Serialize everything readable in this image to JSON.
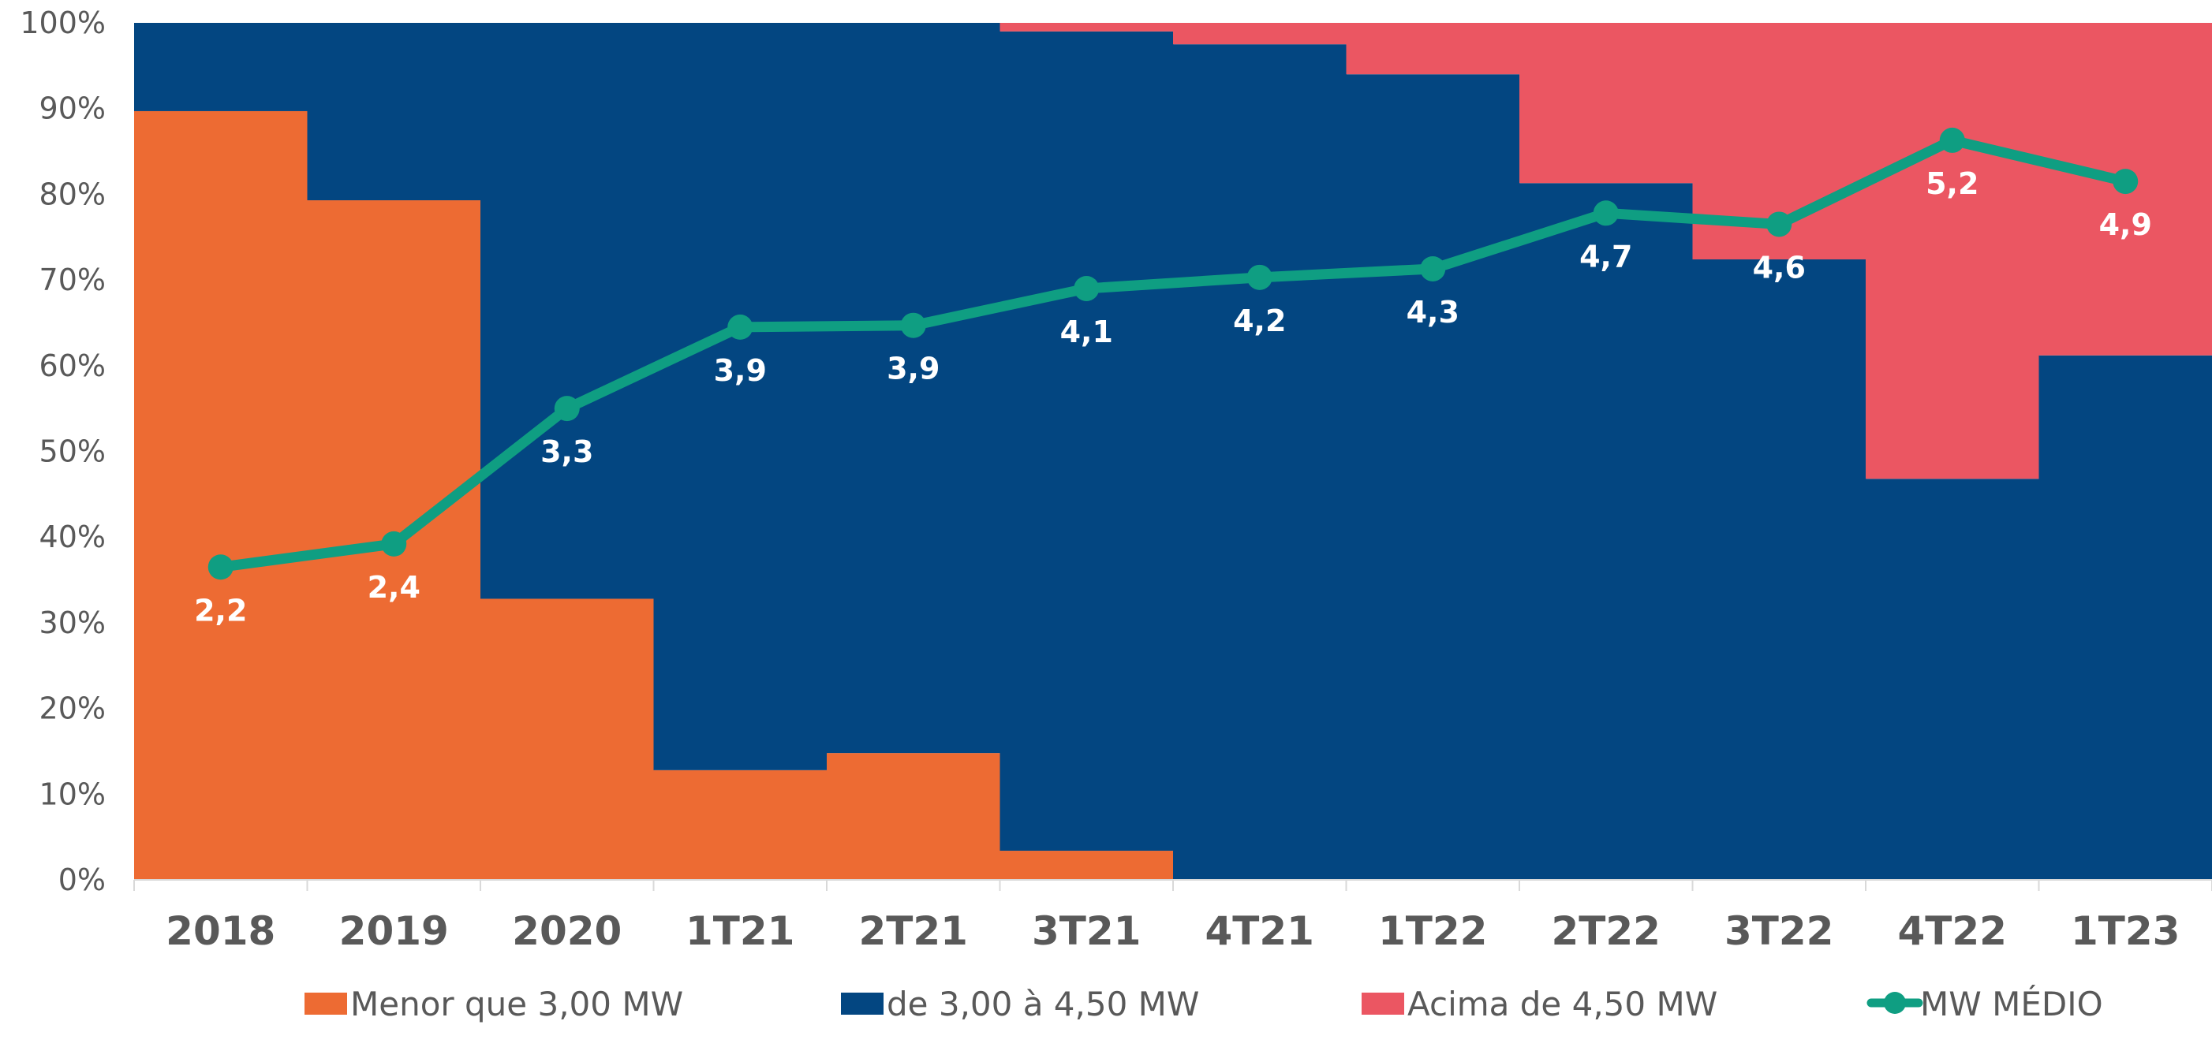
{
  "chart_data": {
    "type": "bar",
    "stacked": true,
    "percent_stacked": true,
    "categories": [
      "2018",
      "2019",
      "2020",
      "1T21",
      "2T21",
      "3T21",
      "4T21",
      "1T22",
      "2T22",
      "3T22",
      "4T22",
      "1T23"
    ],
    "series": [
      {
        "name": "Menor que 3,00 MW",
        "type": "bar",
        "color": "#ED6B33",
        "values": [
          89.7,
          79.3,
          32.8,
          12.8,
          14.8,
          3.4,
          0,
          0,
          0,
          0,
          0,
          0
        ]
      },
      {
        "name": "de 3,00 à 4,50 MW",
        "type": "bar",
        "color": "#034681",
        "values": [
          10.3,
          20.7,
          67.2,
          87.2,
          85.2,
          95.6,
          97.5,
          94.0,
          81.3,
          72.4,
          46.8,
          61.2
        ]
      },
      {
        "name": "Acima de 4,50 MW",
        "type": "bar",
        "color": "#EB5662",
        "values": [
          0,
          0,
          0,
          0,
          0,
          1.0,
          2.5,
          6.0,
          18.7,
          27.6,
          53.2,
          38.8
        ]
      },
      {
        "name": "MW MÉDIO",
        "type": "line",
        "color": "#0F9E82",
        "values": [
          2.2,
          2.4,
          3.3,
          3.9,
          3.9,
          4.1,
          4.2,
          4.3,
          4.7,
          4.6,
          5.2,
          4.9
        ],
        "labels": [
          "2,2",
          "2,4",
          "3,3",
          "3,9",
          "3,9",
          "4,1",
          "4,2",
          "4,3",
          "4,7",
          "4,6",
          "5,2",
          "4,9"
        ],
        "plotted_percent": [
          36.5,
          39.2,
          55.0,
          64.5,
          64.7,
          69.0,
          70.3,
          71.3,
          77.8,
          76.5,
          86.3,
          81.5
        ],
        "label_position": [
          "below",
          "below",
          "below",
          "below",
          "below",
          "below",
          "below",
          "below",
          "below",
          "below",
          "below",
          "below"
        ]
      }
    ],
    "ylim": [
      0,
      100
    ],
    "yticks": [
      "0%",
      "10%",
      "20%",
      "30%",
      "40%",
      "50%",
      "60%",
      "70%",
      "80%",
      "90%",
      "100%"
    ],
    "grid": false,
    "legend_placement": "bottom",
    "title": "",
    "xlabel": "",
    "ylabel": ""
  }
}
